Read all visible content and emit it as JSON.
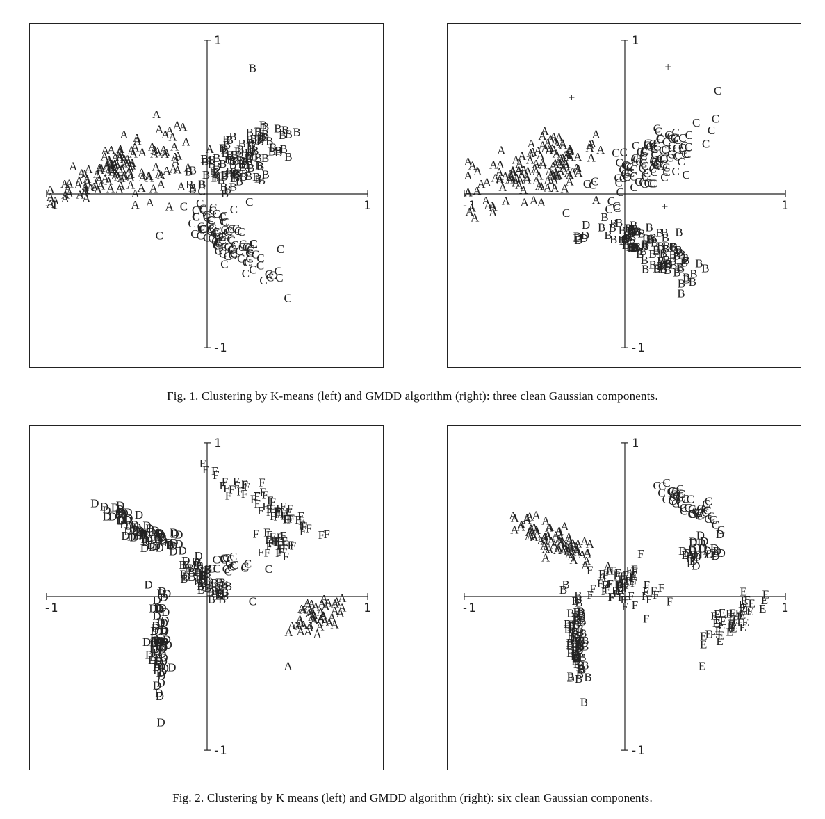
{
  "captions": {
    "fig1": "Fig. 1.   Clustering by K-means (left) and GMDD algorithm (right): three clean Gaussian components.",
    "fig2": "Fig. 2.   Clustering by K means (left) and GMDD algorithm (right): six clean Gaussian components."
  },
  "chart_data": [
    {
      "type": "scatter",
      "panel": "fig1-left",
      "xlim": [
        -1,
        1
      ],
      "ylim": [
        -1,
        1
      ],
      "tick_labels": {
        "x_min": "-1",
        "x_max": "1",
        "y_min": "-1",
        "y_max": "1"
      },
      "clusters": [
        {
          "label": "A",
          "cx": -0.55,
          "cy": 0.17,
          "sx": 0.22,
          "sy": 0.09,
          "rot": 0.35,
          "n": 130
        },
        {
          "label": "B",
          "cx": 0.22,
          "cy": 0.23,
          "sx": 0.18,
          "sy": 0.07,
          "rot": 0.55,
          "n": 110
        },
        {
          "label": "C",
          "cx": 0.14,
          "cy": -0.3,
          "sx": 0.17,
          "sy": 0.06,
          "rot": -0.6,
          "n": 100
        }
      ],
      "extra_points": [
        {
          "label": "B",
          "x": 0.28,
          "y": 0.82
        },
        {
          "label": "A",
          "x": -0.32,
          "y": 0.52
        },
        {
          "label": "A",
          "x": -0.24,
          "y": -0.08
        },
        {
          "label": "C",
          "x": 0.26,
          "y": -0.05
        },
        {
          "label": "C",
          "x": -0.3,
          "y": -0.27
        }
      ]
    },
    {
      "type": "scatter",
      "panel": "fig1-right",
      "xlim": [
        -1,
        1
      ],
      "ylim": [
        -1,
        1
      ],
      "tick_labels": {
        "x_min": "-1",
        "x_max": "1",
        "y_min": "-1",
        "y_max": "1"
      },
      "clusters": [
        {
          "label": "A",
          "cx": -0.55,
          "cy": 0.17,
          "sx": 0.22,
          "sy": 0.09,
          "rot": 0.35,
          "n": 130
        },
        {
          "label": "C",
          "cx": 0.15,
          "cy": 0.22,
          "sx": 0.2,
          "sy": 0.08,
          "rot": 0.6,
          "n": 115
        },
        {
          "label": "B",
          "cx": 0.14,
          "cy": -0.35,
          "sx": 0.17,
          "sy": 0.06,
          "rot": -0.6,
          "n": 100
        },
        {
          "label": "D",
          "cx": -0.28,
          "cy": -0.25,
          "sx": 0.03,
          "sy": 0.03,
          "rot": 0,
          "n": 6
        }
      ],
      "extra_points": [
        {
          "label": "+",
          "x": 0.27,
          "y": 0.83
        },
        {
          "label": "+",
          "x": -0.33,
          "y": 0.63
        },
        {
          "label": "+",
          "x": -0.92,
          "y": 0.16
        },
        {
          "label": "+",
          "x": 0.25,
          "y": -0.08
        }
      ]
    },
    {
      "type": "scatter",
      "panel": "fig2-left",
      "xlim": [
        -1,
        1
      ],
      "ylim": [
        -1,
        1
      ],
      "tick_labels": {
        "x_min": "-1",
        "x_max": "1",
        "y_min": "-1",
        "y_max": "1"
      },
      "clusters": [
        {
          "label": "D",
          "cx": -0.38,
          "cy": 0.42,
          "sx": 0.16,
          "sy": 0.04,
          "rot": -0.5,
          "n": 80
        },
        {
          "label": "D",
          "cx": -0.3,
          "cy": -0.3,
          "sx": 0.03,
          "sy": 0.16,
          "rot": 0,
          "n": 70
        },
        {
          "label": "B",
          "cx": 0.0,
          "cy": 0.1,
          "sx": 0.1,
          "sy": 0.04,
          "rot": -0.6,
          "n": 50
        },
        {
          "label": "F",
          "cx": 0.38,
          "cy": 0.6,
          "sx": 0.2,
          "sy": 0.03,
          "rot": -0.55,
          "n": 55
        },
        {
          "label": "F",
          "cx": 0.44,
          "cy": 0.34,
          "sx": 0.05,
          "sy": 0.05,
          "rot": 0,
          "n": 25
        },
        {
          "label": "C",
          "cx": 0.15,
          "cy": 0.22,
          "sx": 0.06,
          "sy": 0.04,
          "rot": 0,
          "n": 18
        },
        {
          "label": "A",
          "cx": 0.68,
          "cy": -0.12,
          "sx": 0.11,
          "sy": 0.05,
          "rot": 0.6,
          "n": 45
        }
      ],
      "extra_points": [
        {
          "label": "A",
          "x": 0.5,
          "y": -0.45
        },
        {
          "label": "D",
          "x": -0.37,
          "y": 0.08
        },
        {
          "label": "C",
          "x": 0.28,
          "y": -0.03
        },
        {
          "label": "C",
          "x": 0.38,
          "y": 0.18
        }
      ]
    },
    {
      "type": "scatter",
      "panel": "fig2-right",
      "xlim": [
        -1,
        1
      ],
      "ylim": [
        -1,
        1
      ],
      "tick_labels": {
        "x_min": "-1",
        "x_max": "1",
        "y_min": "-1",
        "y_max": "1"
      },
      "clusters": [
        {
          "label": "A",
          "cx": -0.42,
          "cy": 0.36,
          "sx": 0.15,
          "sy": 0.05,
          "rot": -0.5,
          "n": 75
        },
        {
          "label": "B",
          "cx": -0.3,
          "cy": -0.3,
          "sx": 0.03,
          "sy": 0.16,
          "rot": 0,
          "n": 70
        },
        {
          "label": "F",
          "cx": 0.0,
          "cy": 0.08,
          "sx": 0.1,
          "sy": 0.07,
          "rot": -0.4,
          "n": 60
        },
        {
          "label": "C",
          "cx": 0.4,
          "cy": 0.6,
          "sx": 0.16,
          "sy": 0.03,
          "rot": -0.55,
          "n": 50
        },
        {
          "label": "D",
          "cx": 0.46,
          "cy": 0.3,
          "sx": 0.07,
          "sy": 0.05,
          "rot": 0,
          "n": 30
        },
        {
          "label": "E",
          "cx": 0.68,
          "cy": -0.12,
          "sx": 0.12,
          "sy": 0.05,
          "rot": 0.6,
          "n": 45
        }
      ],
      "extra_points": [
        {
          "label": "E",
          "x": 0.48,
          "y": -0.45
        },
        {
          "label": "B",
          "x": -0.37,
          "y": 0.08
        },
        {
          "label": "F",
          "x": 0.28,
          "y": -0.03
        },
        {
          "label": "F",
          "x": 0.1,
          "y": 0.28
        }
      ]
    }
  ]
}
